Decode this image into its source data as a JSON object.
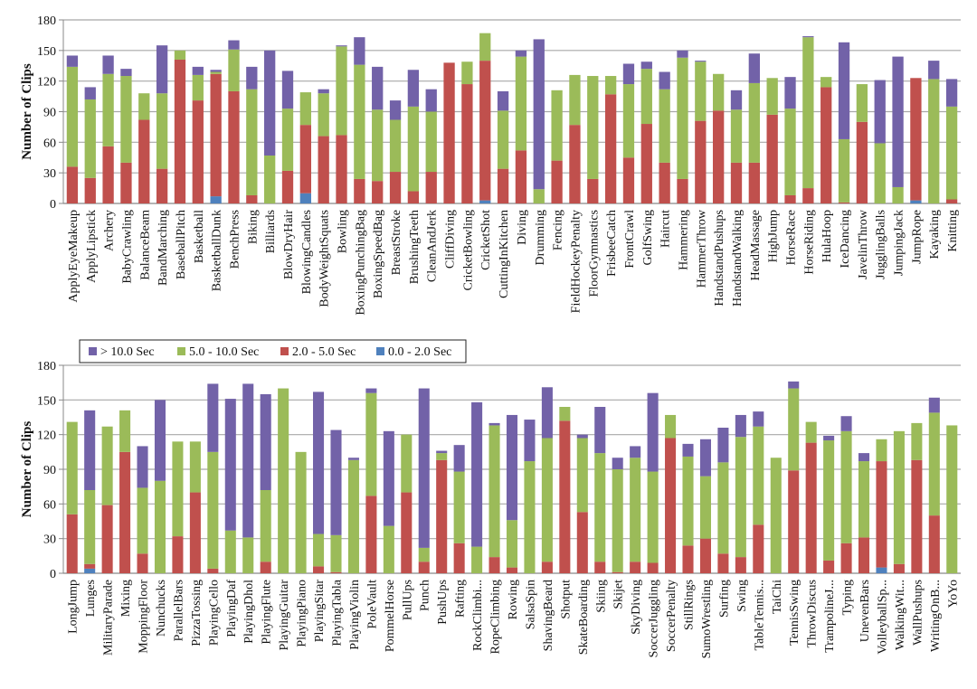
{
  "legend": {
    "items": [
      {
        "label": "> 10.0 Sec",
        "color": "#7262a8"
      },
      {
        "label": "5.0 - 10.0 Sec",
        "color": "#9bbb59"
      },
      {
        "label": "2.0 - 5.0 Sec",
        "color": "#c0504d"
      },
      {
        "label": "0.0 - 2.0 Sec",
        "color": "#4f81bd"
      }
    ]
  },
  "chart_data": [
    {
      "type": "bar",
      "stacked": true,
      "title": "",
      "xlabel": "",
      "ylabel": "Number of Clips",
      "ylim": [
        0,
        180
      ],
      "yticks": [
        0,
        30,
        60,
        90,
        120,
        150,
        180
      ],
      "grid": true,
      "legend_position": "top",
      "categories": [
        "ApplyEyeMakeup",
        "ApplyLipstick",
        "Archery",
        "BabyCrawling",
        "BalanceBeam",
        "BandMarching",
        "BaseballPitch",
        "Basketball",
        "BasketballDunk",
        "BenchPress",
        "Biking",
        "Billiards",
        "BlowDryHair",
        "BlowingCandles",
        "BodyWeightSquats",
        "Bowling",
        "BoxingPunchingBag",
        "BoxingSpeedBag",
        "BreastStroke",
        "BrushingTeeth",
        "CleanAndJerk",
        "CliffDiving",
        "CricketBowling",
        "CricketShot",
        "CuttingInKitchen",
        "Diving",
        "Drumming",
        "Fencing",
        "FieldHockeyPenalty",
        "FloorGymnastics",
        "FrisbeeCatch",
        "FrontCrawl",
        "GolfSwing",
        "Haircut",
        "Hammering",
        "HammerThrow",
        "HandstandPushups",
        "HandstandWalking",
        "HeadMassage",
        "HighJump",
        "HorseRace",
        "HorseRiding",
        "HulaHoop",
        "IceDancing",
        "JavelinThrow",
        "JugglingBalls",
        "JumpingJack",
        "JumpRope",
        "Kayaking",
        "Knitting"
      ],
      "series": [
        {
          "name": "0.0 - 2.0 Sec",
          "color": "#4f81bd",
          "values": [
            0,
            0,
            0,
            0,
            0,
            0,
            0,
            0,
            7,
            0,
            0,
            0,
            0,
            10,
            0,
            0,
            0,
            0,
            0,
            0,
            0,
            0,
            0,
            3,
            0,
            0,
            0,
            0,
            0,
            0,
            0,
            0,
            0,
            0,
            0,
            0,
            0,
            0,
            0,
            0,
            0,
            0,
            0,
            0,
            0,
            0,
            0,
            3,
            0,
            0
          ]
        },
        {
          "name": "2.0 - 5.0 Sec",
          "color": "#c0504d",
          "values": [
            36,
            25,
            56,
            40,
            82,
            34,
            141,
            101,
            120,
            110,
            8,
            0,
            32,
            67,
            66,
            67,
            24,
            22,
            31,
            12,
            31,
            138,
            117,
            137,
            34,
            52,
            0,
            42,
            77,
            24,
            107,
            45,
            78,
            40,
            24,
            81,
            91,
            40,
            40,
            87,
            8,
            15,
            114,
            1,
            80,
            0,
            0,
            120,
            0,
            4
          ]
        },
        {
          "name": "5.0 - 10.0 Sec",
          "color": "#9bbb59",
          "values": [
            98,
            77,
            71,
            85,
            26,
            74,
            9,
            25,
            2,
            41,
            104,
            47,
            61,
            32,
            42,
            87,
            112,
            70,
            51,
            83,
            59,
            0,
            22,
            27,
            57,
            92,
            14,
            69,
            49,
            101,
            18,
            72,
            54,
            72,
            119,
            58,
            36,
            52,
            78,
            36,
            85,
            148,
            10,
            62,
            37,
            59,
            16,
            0,
            122,
            91
          ]
        },
        {
          "name": "> 10.0 Sec",
          "color": "#7262a8",
          "values": [
            11,
            12,
            18,
            7,
            0,
            47,
            0,
            8,
            2,
            9,
            22,
            103,
            37,
            0,
            4,
            1,
            27,
            42,
            19,
            36,
            22,
            0,
            0,
            0,
            19,
            6,
            147,
            0,
            0,
            0,
            0,
            20,
            7,
            17,
            7,
            1,
            0,
            19,
            29,
            0,
            31,
            1,
            0,
            95,
            0,
            62,
            128,
            0,
            18,
            27
          ]
        }
      ]
    },
    {
      "type": "bar",
      "stacked": true,
      "title": "",
      "xlabel": "",
      "ylabel": "Number of Clips",
      "ylim": [
        0,
        180
      ],
      "yticks": [
        0,
        30,
        60,
        90,
        120,
        150,
        180
      ],
      "grid": true,
      "legend_position": "top-left",
      "categories": [
        "LongJump",
        "Lunges",
        "MilitaryParade",
        "Mixing",
        "MoppingFloor",
        "Nunchucks",
        "ParallelBars",
        "PizzaTossing",
        "PlayingCello",
        "PlayingDaf",
        "PlayingDhol",
        "PlayingFlute",
        "PlayingGuitar",
        "PlayingPiano",
        "PlayingSitar",
        "PlayingTabla",
        "PlayingViolin",
        "PoleVault",
        "PommelHorse",
        "PullUps",
        "Punch",
        "PushUps",
        "Rafting",
        "RockClimbi...",
        "RopeClimbing",
        "Rowing",
        "SalsaSpin",
        "ShavingBeard",
        "Shotput",
        "SkateBoarding",
        "Skiing",
        "Skijet",
        "SkyDiving",
        "SoccerJuggling",
        "SoccerPenalty",
        "StillRings",
        "SumoWrestling",
        "Surfing",
        "Swing",
        "TableTennis...",
        "TaiChi",
        "TennisSwing",
        "ThrowDiscus",
        "TrampolineJ...",
        "Typing",
        "UnevenBars",
        "VolleyballSp...",
        "WalkingWit...",
        "WallPushups",
        "WritingOnB...",
        "YoYo"
      ],
      "series": [
        {
          "name": "0.0 - 2.0 Sec",
          "color": "#4f81bd",
          "values": [
            0,
            4,
            0,
            0,
            0,
            0,
            0,
            0,
            0,
            0,
            0,
            0,
            0,
            0,
            0,
            0,
            0,
            0,
            0,
            0,
            0,
            0,
            0,
            0,
            0,
            0,
            0,
            0,
            0,
            0,
            0,
            0,
            0,
            0,
            0,
            0,
            0,
            0,
            0,
            0,
            0,
            0,
            0,
            0,
            0,
            0,
            5,
            0,
            0,
            0,
            0
          ]
        },
        {
          "name": "2.0 - 5.0 Sec",
          "color": "#c0504d",
          "values": [
            51,
            4,
            59,
            105,
            17,
            0,
            32,
            70,
            4,
            0,
            0,
            10,
            0,
            0,
            6,
            1,
            0,
            67,
            0,
            70,
            10,
            98,
            26,
            0,
            14,
            5,
            0,
            10,
            132,
            53,
            10,
            1,
            10,
            9,
            117,
            24,
            30,
            17,
            14,
            42,
            0,
            89,
            113,
            11,
            26,
            31,
            92,
            8,
            98,
            50,
            0
          ]
        },
        {
          "name": "5.0 - 10.0 Sec",
          "color": "#9bbb59",
          "values": [
            80,
            64,
            68,
            36,
            57,
            80,
            82,
            44,
            101,
            37,
            31,
            62,
            160,
            105,
            28,
            32,
            98,
            89,
            41,
            50,
            12,
            6,
            62,
            23,
            114,
            41,
            97,
            107,
            12,
            64,
            94,
            89,
            90,
            79,
            20,
            77,
            54,
            79,
            104,
            85,
            100,
            71,
            18,
            104,
            97,
            66,
            19,
            115,
            32,
            89,
            128
          ]
        },
        {
          "name": "> 10.0 Sec",
          "color": "#7262a8",
          "values": [
            0,
            69,
            0,
            0,
            36,
            70,
            0,
            0,
            59,
            114,
            133,
            83,
            0,
            0,
            123,
            91,
            2,
            4,
            82,
            0,
            138,
            2,
            23,
            125,
            2,
            91,
            36,
            44,
            0,
            3,
            40,
            10,
            10,
            68,
            0,
            11,
            32,
            30,
            19,
            13,
            0,
            6,
            0,
            4,
            13,
            7,
            0,
            0,
            0,
            13,
            0
          ]
        }
      ]
    }
  ]
}
